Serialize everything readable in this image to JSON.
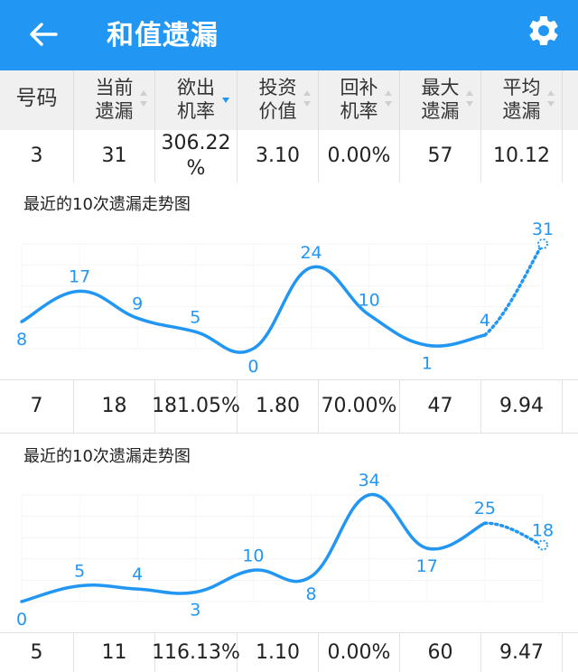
{
  "app": {
    "title": "和值遗漏",
    "back_icon": "arrow-left-icon",
    "settings_icon": "gear-icon",
    "accent": "#2196F3"
  },
  "table": {
    "columns": [
      {
        "l1": "号码",
        "l2": "",
        "sort": "none"
      },
      {
        "l1": "当前",
        "l2": "遗漏",
        "sort": "both"
      },
      {
        "l1": "欲出",
        "l2": "机率",
        "sort": "desc"
      },
      {
        "l1": "投资",
        "l2": "价值",
        "sort": "both"
      },
      {
        "l1": "回补",
        "l2": "机率",
        "sort": "both"
      },
      {
        "l1": "最大",
        "l2": "遗漏",
        "sort": "both"
      },
      {
        "l1": "平均",
        "l2": "遗漏",
        "sort": "both"
      }
    ],
    "rows": [
      [
        "3",
        "31",
        "306.22\n%",
        "3.10",
        "0.00%",
        "57",
        "10.12"
      ],
      [
        "7",
        "18",
        "181.05%",
        "1.80",
        "70.00%",
        "47",
        "9.94"
      ],
      [
        "5",
        "11",
        "116.13%",
        "1.10",
        "0.00%",
        "60",
        "9.47"
      ]
    ]
  },
  "chart_data": [
    {
      "type": "line",
      "title": "最近的10次遗漏走势图",
      "values": [
        8,
        17,
        9,
        5,
        0,
        24,
        10,
        1,
        4,
        31
      ],
      "ylim": [
        0,
        31
      ]
    },
    {
      "type": "line",
      "title": "最近的10次遗漏走势图",
      "values": [
        0,
        5,
        4,
        3,
        10,
        8,
        34,
        17,
        25,
        18
      ],
      "ylim": [
        0,
        34
      ]
    }
  ]
}
